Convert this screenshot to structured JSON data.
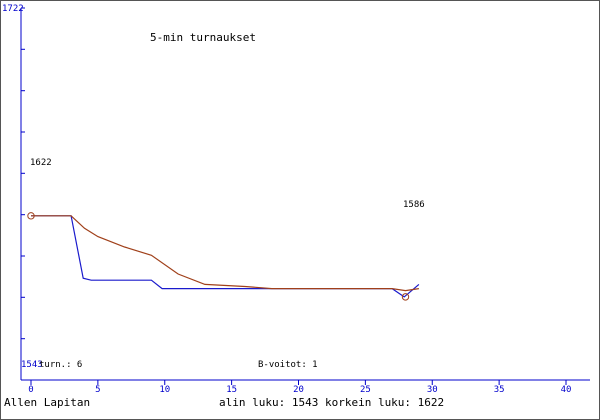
{
  "chart_data": {
    "type": "line",
    "title": "5-min turnaukset",
    "xlim": [
      0,
      40
    ],
    "ylim": [
      1543,
      1722
    ],
    "x_ticks": [
      0,
      5,
      10,
      15,
      20,
      25,
      30,
      35,
      40
    ],
    "y_top_label": "1722",
    "y_bottom_label": "1543",
    "series": [
      {
        "color": "#1a1acc",
        "points": [
          [
            0,
            1622
          ],
          [
            3,
            1622
          ],
          [
            3.9,
            1592
          ],
          [
            4.5,
            1591
          ],
          [
            9,
            1591
          ],
          [
            9.8,
            1587
          ],
          [
            12,
            1587
          ],
          [
            19,
            1587
          ],
          [
            27,
            1587
          ],
          [
            27.9,
            1583
          ],
          [
            29,
            1589
          ]
        ]
      },
      {
        "color": "#a0401a",
        "points": [
          [
            0,
            1622
          ],
          [
            3,
            1622
          ],
          [
            4,
            1616
          ],
          [
            5,
            1612
          ],
          [
            7,
            1607
          ],
          [
            9,
            1603
          ],
          [
            11,
            1594
          ],
          [
            13,
            1589
          ],
          [
            16,
            1588
          ],
          [
            18,
            1587
          ],
          [
            27,
            1587
          ],
          [
            28,
            1586
          ],
          [
            29,
            1587
          ]
        ]
      }
    ],
    "annotations": [
      {
        "text": "1622",
        "x": 0,
        "y": 1622
      },
      {
        "text": "1586",
        "x": 28,
        "y": 1583
      }
    ],
    "markers": [
      [
        0,
        1622
      ],
      [
        28,
        1583
      ]
    ]
  },
  "info": {
    "turn_label": "turn.: 6",
    "wins_label": "B-voitot: 1",
    "player_name": "Allen Lapitan",
    "range_text": "alin luku: 1543  korkein luku: 1622"
  }
}
